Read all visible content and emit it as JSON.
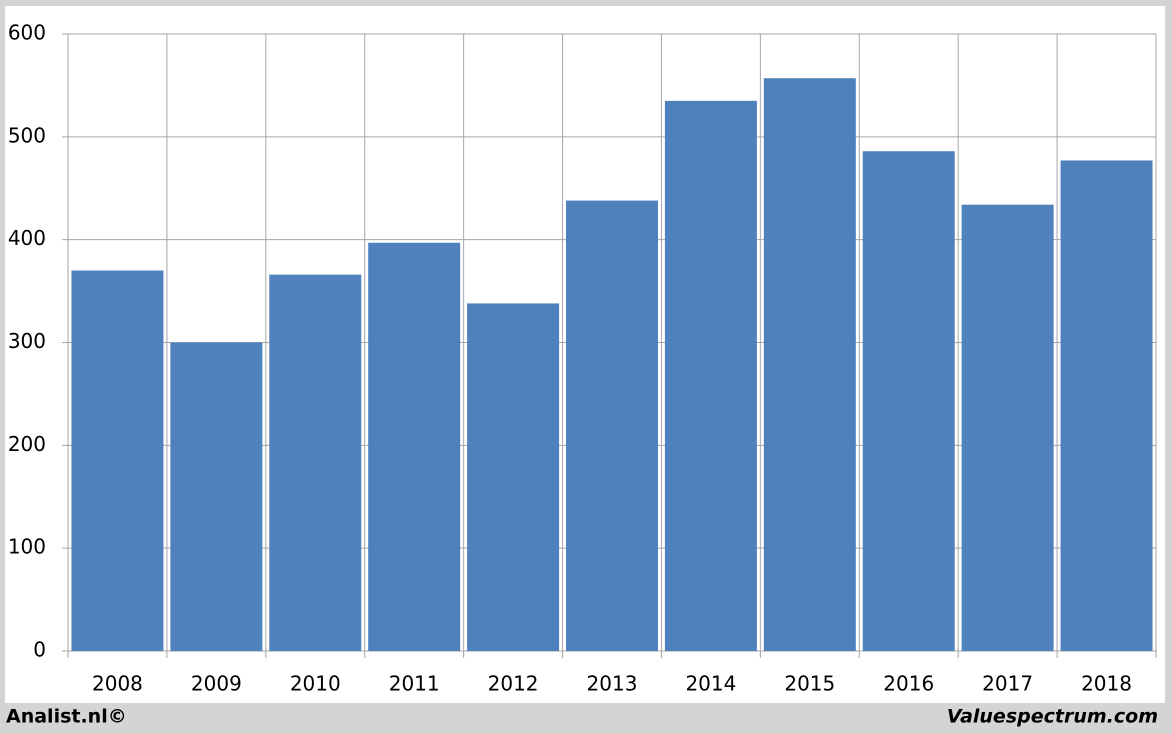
{
  "chart_data": {
    "type": "bar",
    "categories": [
      "2008",
      "2009",
      "2010",
      "2011",
      "2012",
      "2013",
      "2014",
      "2015",
      "2016",
      "2017",
      "2018"
    ],
    "values": [
      370,
      300,
      366,
      397,
      338,
      438,
      535,
      557,
      486,
      434,
      477
    ],
    "color": "#4f81bd",
    "ylim": [
      0,
      600
    ],
    "yticks": [
      0,
      100,
      200,
      300,
      400,
      500,
      600
    ],
    "grid": true,
    "footer_left": "Analist.nl©",
    "footer_right": "Valuespectrum.com"
  }
}
